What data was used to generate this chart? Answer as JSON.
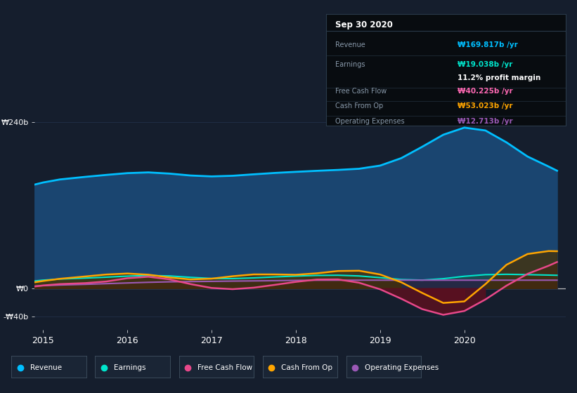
{
  "bg_color": "#151e2d",
  "plot_bg_color": "#151e2d",
  "title_box": {
    "date": "Sep 30 2020",
    "rows": [
      {
        "label": "Revenue",
        "value": "₩169.817b /yr",
        "value_color": "#00bfff"
      },
      {
        "label": "Earnings",
        "value": "₩19.038b /yr",
        "value_color": "#00e5cc"
      },
      {
        "label": "",
        "value": "11.2% profit margin",
        "value_color": "#ffffff"
      },
      {
        "label": "Free Cash Flow",
        "value": "₩40.225b /yr",
        "value_color": "#ff69b4"
      },
      {
        "label": "Cash From Op",
        "value": "₩53.023b /yr",
        "value_color": "#ffa500"
      },
      {
        "label": "Operating Expenses",
        "value": "₩12.713b /yr",
        "value_color": "#9b59b6"
      }
    ]
  },
  "x_years": [
    2014.9,
    2015.0,
    2015.2,
    2015.5,
    2015.75,
    2016.0,
    2016.25,
    2016.5,
    2016.75,
    2017.0,
    2017.25,
    2017.5,
    2017.75,
    2018.0,
    2018.25,
    2018.5,
    2018.75,
    2019.0,
    2019.25,
    2019.5,
    2019.75,
    2020.0,
    2020.25,
    2020.5,
    2020.75,
    2021.0,
    2021.1
  ],
  "revenue": [
    148,
    152,
    158,
    162,
    163,
    167,
    170,
    166,
    162,
    160,
    162,
    165,
    167,
    168,
    170,
    171,
    172,
    173,
    184,
    204,
    224,
    242,
    236,
    212,
    186,
    170,
    168
  ],
  "earnings": [
    10,
    12,
    14,
    15,
    16,
    18,
    20,
    19,
    16,
    13,
    14,
    15,
    17,
    18,
    19,
    20,
    19,
    16,
    12,
    10,
    13,
    19,
    21,
    21,
    20,
    19,
    19
  ],
  "free_cash_flow": [
    2,
    4,
    7,
    9,
    5,
    18,
    21,
    15,
    5,
    -1,
    -4,
    1,
    5,
    10,
    14,
    17,
    10,
    1,
    -12,
    -33,
    -48,
    -38,
    -18,
    8,
    22,
    38,
    40
  ],
  "cash_from_op": [
    8,
    10,
    14,
    18,
    20,
    24,
    22,
    15,
    10,
    13,
    18,
    23,
    21,
    17,
    21,
    27,
    29,
    24,
    10,
    -3,
    -28,
    -43,
    12,
    42,
    57,
    55,
    53
  ],
  "operating_expenses": [
    3,
    4,
    5,
    6,
    7,
    8,
    9,
    10,
    10,
    10,
    11,
    11,
    11,
    12,
    12,
    12,
    12,
    12,
    12,
    12,
    12,
    12,
    12,
    12,
    12,
    12,
    12
  ],
  "ylim": [
    -60,
    280
  ],
  "yticks": [
    -40,
    0,
    240
  ],
  "ytick_labels": [
    "-₩40b",
    "₩0",
    "₩240b"
  ],
  "xlim": [
    2014.9,
    2021.2
  ],
  "xticks": [
    2015,
    2016,
    2017,
    2018,
    2019,
    2020
  ],
  "colors": {
    "revenue_line": "#00bfff",
    "revenue_fill": "#1a4570",
    "earnings_line": "#00e5cc",
    "earnings_fill": "#1a5050",
    "free_cash_flow_line": "#e8488a",
    "free_cash_flow_fill_pos": "#3a1535",
    "free_cash_flow_fill_neg": "#5a1020",
    "cash_from_op_line": "#ffa500",
    "cash_from_op_fill_pos": "#4a3000",
    "cash_from_op_fill_neg": "#5a1020",
    "operating_expenses_line": "#9b59b6",
    "operating_expenses_fill": "#2a1a40",
    "grid": "#243550",
    "zero_line": "#cccccc"
  },
  "legend": [
    {
      "label": "Revenue",
      "color": "#00bfff"
    },
    {
      "label": "Earnings",
      "color": "#00e5cc"
    },
    {
      "label": "Free Cash Flow",
      "color": "#e8488a"
    },
    {
      "label": "Cash From Op",
      "color": "#ffa500"
    },
    {
      "label": "Operating Expenses",
      "color": "#9b59b6"
    }
  ]
}
